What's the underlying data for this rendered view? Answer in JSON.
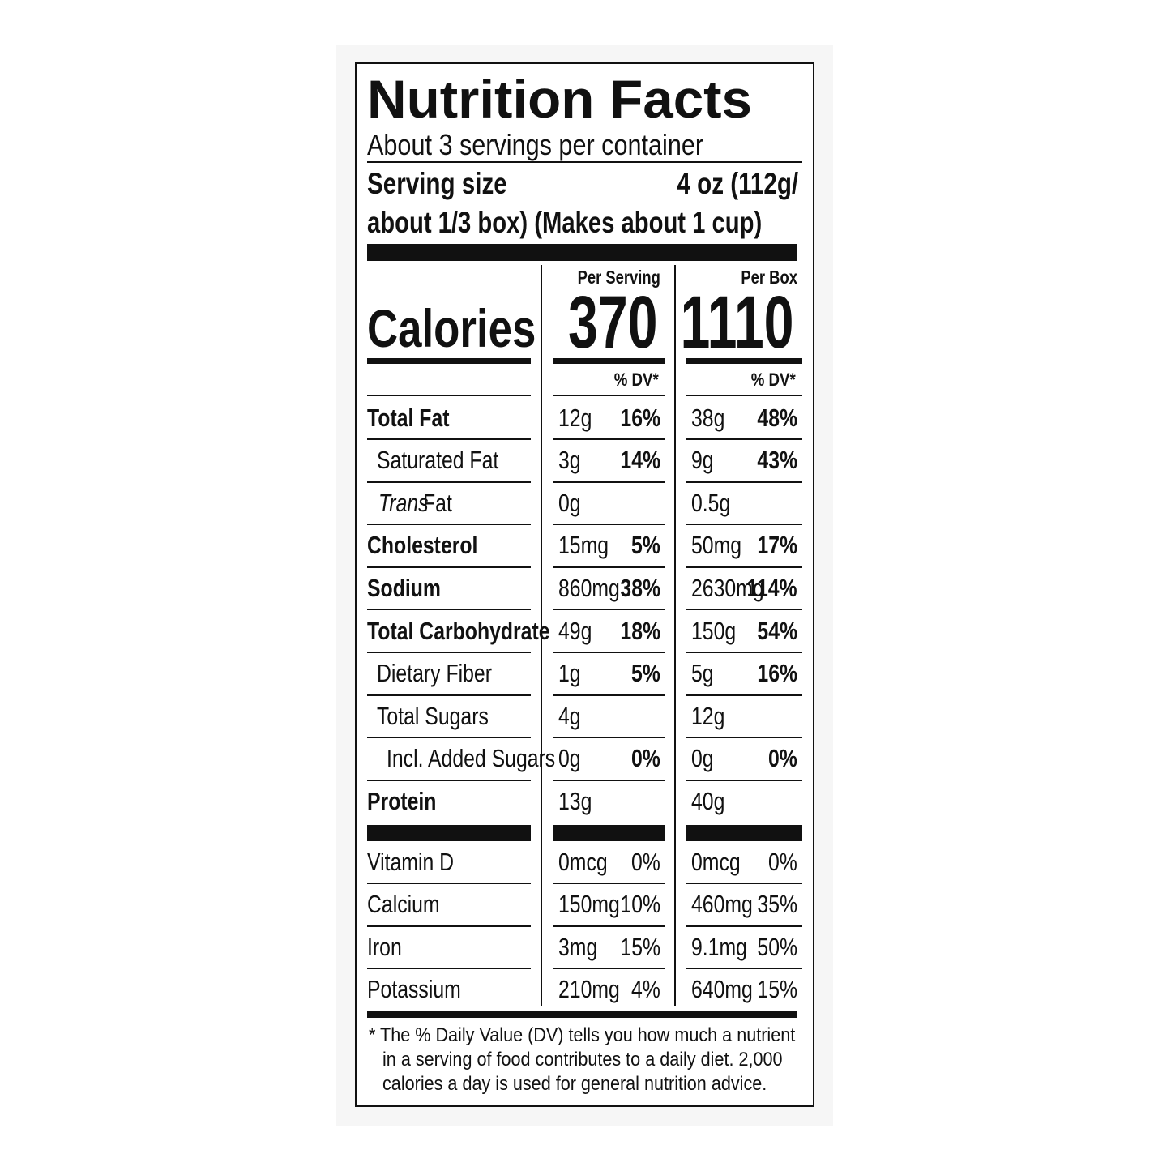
{
  "header": {
    "title": "Nutrition Facts",
    "servings": "About 3 servings per container",
    "serving_size_label": "Serving size",
    "serving_size_value": "4 oz (112g/",
    "serving_size_more": "about 1/3 box) (Makes about 1 cup)"
  },
  "calories": {
    "label": "Calories",
    "columns": [
      {
        "heading": "Per Serving",
        "value": "370",
        "dv_heading": "% DV*"
      },
      {
        "heading": "Per Box",
        "value": "1110",
        "dv_heading": "% DV*"
      }
    ]
  },
  "nutrients": [
    {
      "name": "Total Fat",
      "bold": true,
      "indent": 0,
      "per_serving": {
        "amount": "12g",
        "dv": "16%"
      },
      "per_box": {
        "amount": "38g",
        "dv": "48%"
      }
    },
    {
      "name": "Saturated Fat",
      "bold": false,
      "indent": 1,
      "per_serving": {
        "amount": "3g",
        "dv": "14%"
      },
      "per_box": {
        "amount": "9g",
        "dv": "43%"
      }
    },
    {
      "name_italic": "Trans",
      "name": "Fat",
      "bold": false,
      "indent": 1,
      "per_serving": {
        "amount": "0g"
      },
      "per_box": {
        "amount": "0.5g"
      }
    },
    {
      "name": "Cholesterol",
      "bold": true,
      "indent": 0,
      "per_serving": {
        "amount": "15mg",
        "dv": "5%"
      },
      "per_box": {
        "amount": "50mg",
        "dv": "17%"
      }
    },
    {
      "name": "Sodium",
      "bold": true,
      "indent": 0,
      "per_serving": {
        "amount": "860mg",
        "dv": "38%"
      },
      "per_box": {
        "amount": "2630mg",
        "dv": "114%"
      }
    },
    {
      "name": "Total Carbohydrate",
      "bold": true,
      "indent": 0,
      "per_serving": {
        "amount": "49g",
        "dv": "18%"
      },
      "per_box": {
        "amount": "150g",
        "dv": "54%"
      }
    },
    {
      "name": "Dietary Fiber",
      "bold": false,
      "indent": 1,
      "per_serving": {
        "amount": "1g",
        "dv": "5%"
      },
      "per_box": {
        "amount": "5g",
        "dv": "16%"
      }
    },
    {
      "name": "Total Sugars",
      "bold": false,
      "indent": 1,
      "per_serving": {
        "amount": "4g"
      },
      "per_box": {
        "amount": "12g"
      }
    },
    {
      "name": "Incl. Added Sugars",
      "bold": false,
      "indent": 2,
      "per_serving": {
        "amount": "0g",
        "dv": "0%"
      },
      "per_box": {
        "amount": "0g",
        "dv": "0%"
      }
    },
    {
      "name": "Protein",
      "bold": true,
      "indent": 0,
      "per_serving": {
        "amount": "13g"
      },
      "per_box": {
        "amount": "40g"
      }
    }
  ],
  "vitamins": [
    {
      "name": "Vitamin D",
      "per_serving": {
        "amount": "0mcg",
        "dv": "0%"
      },
      "per_box": {
        "amount": "0mcg",
        "dv": "0%"
      }
    },
    {
      "name": "Calcium",
      "per_serving": {
        "amount": "150mg",
        "dv": "10%"
      },
      "per_box": {
        "amount": "460mg",
        "dv": "35%"
      }
    },
    {
      "name": "Iron",
      "per_serving": {
        "amount": "3mg",
        "dv": "15%"
      },
      "per_box": {
        "amount": "9.1mg",
        "dv": "50%"
      }
    },
    {
      "name": "Potassium",
      "per_serving": {
        "amount": "210mg",
        "dv": "4%"
      },
      "per_box": {
        "amount": "640mg",
        "dv": "15%"
      }
    }
  ],
  "footnote": [
    "* The % Daily Value (DV) tells you how much a nutrient",
    "in a serving of food contributes to a daily diet. 2,000",
    "calories a day is used for general nutrition advice."
  ]
}
